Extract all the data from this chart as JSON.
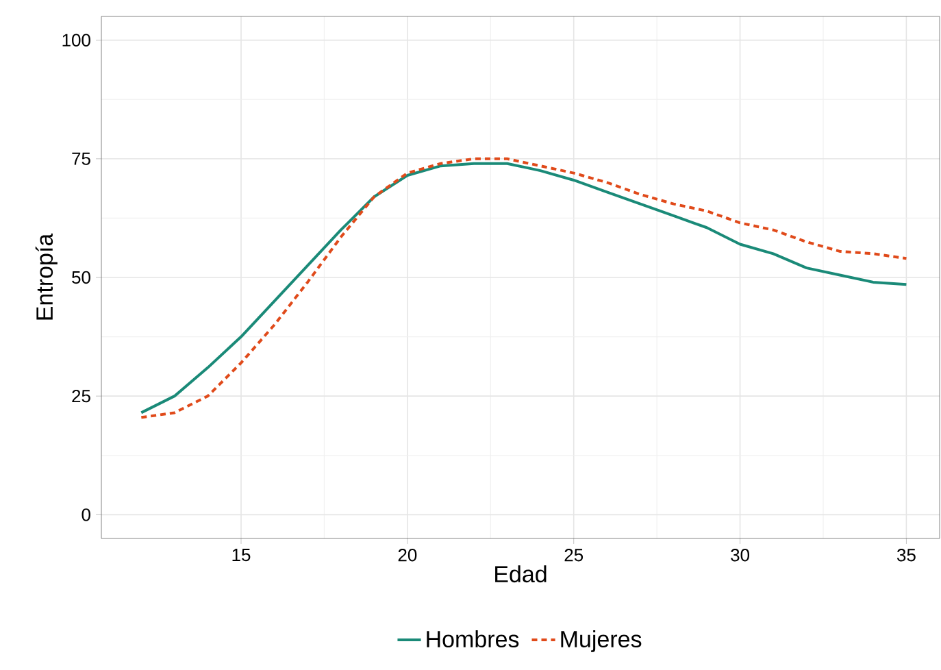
{
  "chart_data": {
    "type": "line",
    "xlabel": "Edad",
    "ylabel": "Entropía",
    "xlim": [
      10.8,
      36
    ],
    "ylim": [
      -5,
      105
    ],
    "xticks": [
      15,
      20,
      25,
      30,
      35
    ],
    "yticks": [
      0,
      25,
      50,
      75,
      100
    ],
    "grid": true,
    "legend": "bottom",
    "x": [
      12,
      13,
      14,
      15,
      16,
      17,
      18,
      19,
      20,
      21,
      22,
      23,
      24,
      25,
      26,
      27,
      28,
      29,
      30,
      31,
      32,
      33,
      34,
      35
    ],
    "series": [
      {
        "name": "Hombres",
        "color": "#1a8a78",
        "line_style": "solid",
        "values": [
          21.5,
          25,
          31,
          37.5,
          45,
          52.5,
          60,
          67,
          71.5,
          73.5,
          74,
          74,
          72.5,
          70.5,
          68,
          65.5,
          63,
          60.5,
          57,
          55,
          52,
          50.5,
          49,
          48.5
        ]
      },
      {
        "name": "Mujeres",
        "color": "#e04a1a",
        "line_style": "dashed",
        "values": [
          20.5,
          21.5,
          25,
          32,
          40,
          49,
          58.5,
          67,
          72,
          74,
          75,
          75,
          73.5,
          72,
          70,
          67.5,
          65.5,
          64,
          61.5,
          60,
          57.5,
          55.5,
          55,
          54
        ]
      }
    ]
  }
}
